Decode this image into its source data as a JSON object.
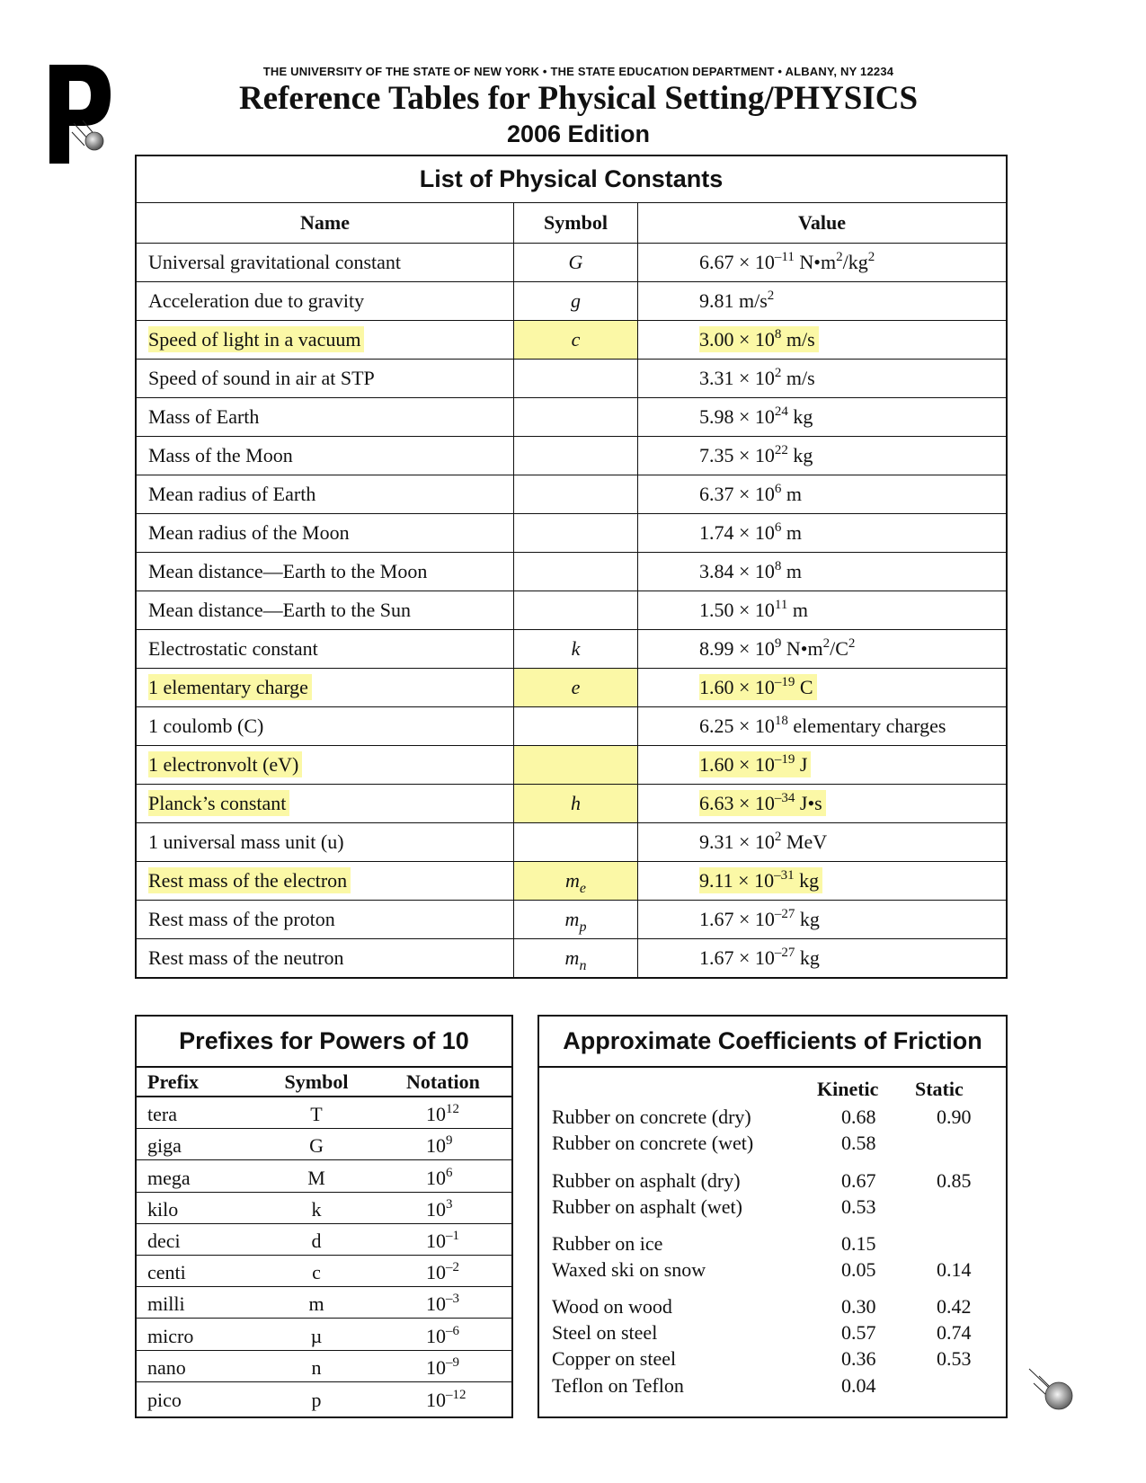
{
  "header": {
    "institution": "THE UNIVERSITY OF THE STATE OF NEW YORK • THE STATE EDUCATION DEPARTMENT • ALBANY, NY  12234",
    "title": "Reference Tables for Physical Setting/PHYSICS",
    "edition": "2006 Edition",
    "logo_letter": "P"
  },
  "highlight_color": "#fbf8a6",
  "constants": {
    "title": "List of Physical Constants",
    "columns": [
      "Name",
      "Symbol",
      "Value"
    ],
    "rows": [
      {
        "name": "Universal gravitational constant",
        "sym": "G",
        "sub": "",
        "coef": "6.67 × 10",
        "exp": "–11",
        "unit": " N•m",
        "unit_sup": "2",
        "unit2": "/kg",
        "unit2_sup": "2",
        "hl": false
      },
      {
        "name": "Acceleration due to gravity",
        "sym": "g",
        "sub": "",
        "coef": "9.81 m/s",
        "exp": "2",
        "unit": "",
        "hl": false
      },
      {
        "name": "Speed of light in a vacuum",
        "sym": "c",
        "sub": "",
        "coef": "3.00 × 10",
        "exp": "8",
        "unit": " m/s",
        "hl": true
      },
      {
        "name": "Speed of sound in air at STP",
        "sym": "",
        "sub": "",
        "coef": "3.31 × 10",
        "exp": "2",
        "unit": " m/s",
        "hl": false
      },
      {
        "name": "Mass of Earth",
        "sym": "",
        "sub": "",
        "coef": "5.98 × 10",
        "exp": "24",
        "unit": " kg",
        "hl": false
      },
      {
        "name": "Mass of the Moon",
        "sym": "",
        "sub": "",
        "coef": "7.35 × 10",
        "exp": "22",
        "unit": " kg",
        "hl": false
      },
      {
        "name": "Mean radius of Earth",
        "sym": "",
        "sub": "",
        "coef": "6.37 × 10",
        "exp": "6",
        "unit": " m",
        "hl": false
      },
      {
        "name": "Mean radius of the Moon",
        "sym": "",
        "sub": "",
        "coef": "1.74 × 10",
        "exp": "6",
        "unit": " m",
        "hl": false
      },
      {
        "name": "Mean distance—Earth to the Moon",
        "sym": "",
        "sub": "",
        "coef": "3.84 × 10",
        "exp": "8",
        "unit": " m",
        "hl": false
      },
      {
        "name": "Mean distance—Earth to the Sun",
        "sym": "",
        "sub": "",
        "coef": "1.50 × 10",
        "exp": "11",
        "unit": " m",
        "hl": false
      },
      {
        "name": "Electrostatic constant",
        "sym": "k",
        "sub": "",
        "coef": "8.99 × 10",
        "exp": "9",
        "unit": " N•m",
        "unit_sup": "2",
        "unit2": "/C",
        "unit2_sup": "2",
        "hl": false
      },
      {
        "name": "1 elementary charge",
        "sym": "e",
        "sub": "",
        "coef": "1.60 × 10",
        "exp": "–19",
        "unit": " C",
        "hl": true
      },
      {
        "name": "1 coulomb (C)",
        "sym": "",
        "sub": "",
        "coef": "6.25 × 10",
        "exp": "18",
        "unit": " elementary charges",
        "hl": false
      },
      {
        "name": "1 electronvolt (eV)",
        "sym": "",
        "sub": "",
        "coef": "1.60 × 10",
        "exp": "–19",
        "unit": " J",
        "hl": true
      },
      {
        "name": "Planck’s constant",
        "sym": "h",
        "sub": "",
        "coef": "6.63 × 10",
        "exp": "–34",
        "unit": " J•s",
        "hl": true
      },
      {
        "name": "1 universal mass unit (u)",
        "sym": "",
        "sub": "",
        "coef": "9.31 × 10",
        "exp": "2",
        "unit": " MeV",
        "hl": false
      },
      {
        "name": "Rest mass of the electron",
        "sym": "m",
        "sub": "e",
        "coef": "9.11 × 10",
        "exp": "–31",
        "unit": " kg",
        "hl": true
      },
      {
        "name": "Rest mass of the proton",
        "sym": "m",
        "sub": "p",
        "coef": "1.67 × 10",
        "exp": "–27",
        "unit": " kg",
        "hl": false
      },
      {
        "name": "Rest mass of the neutron",
        "sym": "m",
        "sub": "n",
        "coef": "1.67 × 10",
        "exp": "–27",
        "unit": " kg",
        "hl": false
      }
    ]
  },
  "prefixes": {
    "title": "Prefixes for Powers of 10",
    "columns": [
      "Prefix",
      "Symbol",
      "Notation"
    ],
    "rows": [
      {
        "prefix": "tera",
        "symbol": "T",
        "base": "10",
        "exp": "12"
      },
      {
        "prefix": "giga",
        "symbol": "G",
        "base": "10",
        "exp": "9"
      },
      {
        "prefix": "mega",
        "symbol": "M",
        "base": "10",
        "exp": "6"
      },
      {
        "prefix": "kilo",
        "symbol": "k",
        "base": "10",
        "exp": "3"
      },
      {
        "prefix": "deci",
        "symbol": "d",
        "base": "10",
        "exp": "–1"
      },
      {
        "prefix": "centi",
        "symbol": "c",
        "base": "10",
        "exp": "–2"
      },
      {
        "prefix": "milli",
        "symbol": "m",
        "base": "10",
        "exp": "–3"
      },
      {
        "prefix": "micro",
        "symbol": "µ",
        "base": "10",
        "exp": "–6"
      },
      {
        "prefix": "nano",
        "symbol": "n",
        "base": "10",
        "exp": "–9"
      },
      {
        "prefix": "pico",
        "symbol": "p",
        "base": "10",
        "exp": "–12"
      }
    ]
  },
  "friction": {
    "title": "Approximate Coefficients of Friction",
    "columns": [
      "Kinetic",
      "Static"
    ],
    "rows": [
      {
        "material": "Rubber on concrete (dry)",
        "kinetic": "0.68",
        "static": "0.90"
      },
      {
        "material": "Rubber on concrete (wet)",
        "kinetic": "0.58",
        "static": ""
      },
      {
        "material": "Rubber on asphalt (dry)",
        "kinetic": "0.67",
        "static": "0.85"
      },
      {
        "material": "Rubber on asphalt (wet)",
        "kinetic": "0.53",
        "static": ""
      },
      {
        "material": "Rubber on ice",
        "kinetic": "0.15",
        "static": ""
      },
      {
        "material": "Waxed ski on snow",
        "kinetic": "0.05",
        "static": "0.14"
      },
      {
        "material": "Wood on wood",
        "kinetic": "0.30",
        "static": "0.42"
      },
      {
        "material": "Steel on steel",
        "kinetic": "0.57",
        "static": "0.74"
      },
      {
        "material": "Copper on steel",
        "kinetic": "0.36",
        "static": "0.53"
      },
      {
        "material": "Teflon on Teflon",
        "kinetic": "0.04",
        "static": ""
      }
    ]
  }
}
